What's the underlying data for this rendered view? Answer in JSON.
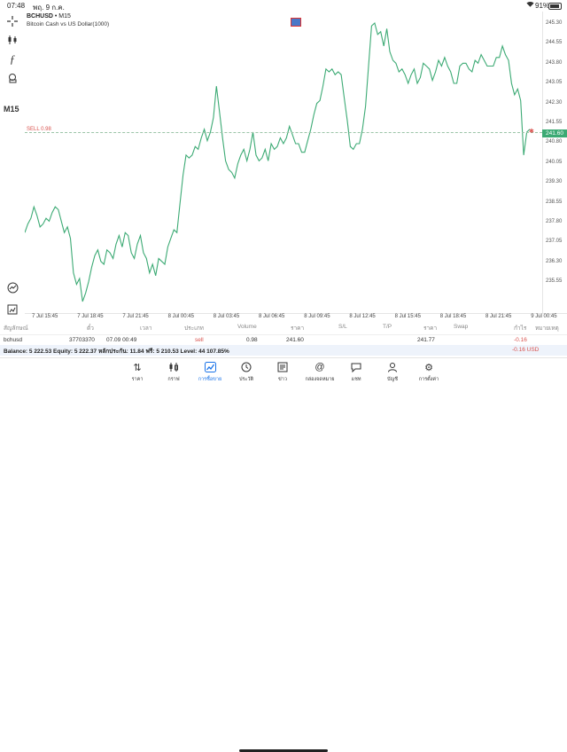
{
  "status_bar": {
    "time": "07:48",
    "date": "พฤ. 9 ก.ค.",
    "battery": "91%"
  },
  "toolbar": {
    "timeframe": "M15"
  },
  "chart_header": {
    "symbol": "BCHUSD",
    "timeframe": "M15",
    "description": "Bitcoin Cash vs US Dollar(1000)"
  },
  "sell_line": {
    "label": "SELL 0.98",
    "price": "241.60"
  },
  "price_ticks": [
    "245.30",
    "244.55",
    "243.80",
    "243.05",
    "242.30",
    "241.55",
    "240.80",
    "240.05",
    "239.30",
    "238.55",
    "237.80",
    "237.05",
    "236.30",
    "235.55"
  ],
  "time_ticks": [
    "7 Jul 15:45",
    "7 Jul 18:45",
    "7 Jul 21:45",
    "8 Jul 00:45",
    "8 Jul 03:45",
    "8 Jul 06:45",
    "8 Jul 09:45",
    "8 Jul 12:45",
    "8 Jul 15:45",
    "8 Jul 18:45",
    "8 Jul 21:45",
    "9 Jul 00:45"
  ],
  "table": {
    "headers": [
      "สัญลักษณ์",
      "ตั๋ว",
      "เวลา",
      "ประเภท",
      "Volume",
      "ราคา",
      "S/L",
      "T/P",
      "ราคา",
      "Swap",
      "กำไร",
      "หมายเหตุ"
    ],
    "row": {
      "symbol": "bchusd",
      "ticket": "37703370",
      "time": "07.09 00:49",
      "type": "sell",
      "volume": "0.98",
      "open_price": "241.60",
      "current_price": "241.77",
      "profit": "-0.16"
    }
  },
  "balance_bar": {
    "summary": "Balance: 5 222.53  Equity: 5 222.37  หลักประกัน: 11.84  ฟรี: 5 210.53  Level: 44 107.85%",
    "total": "-0.16  USD"
  },
  "tabs": [
    {
      "label": "ราคา",
      "icon": "arrows-up-down-icon"
    },
    {
      "label": "กราฟ",
      "icon": "candles-icon"
    },
    {
      "label": "การซื้อขาย",
      "icon": "trade-icon",
      "active": true
    },
    {
      "label": "ประวัติ",
      "icon": "history-icon"
    },
    {
      "label": "ข่าว",
      "icon": "news-icon"
    },
    {
      "label": "กล่องจดหมาย",
      "icon": "at-icon"
    },
    {
      "label": "แชท",
      "icon": "chat-icon"
    },
    {
      "label": "บัญชี",
      "icon": "account-icon"
    },
    {
      "label": "การตั้งค่า",
      "icon": "gear-icon"
    }
  ],
  "chart_data": {
    "type": "line",
    "price_range": [
      235.2,
      245.7
    ],
    "series": [
      {
        "color": "#3caa74",
        "values": [
          238.0,
          238.3,
          238.5,
          238.9,
          238.6,
          238.2,
          238.3,
          238.5,
          238.4,
          238.7,
          238.9,
          238.8,
          238.4,
          238.0,
          238.2,
          237.8,
          236.6,
          236.2,
          236.4,
          235.6,
          235.9,
          236.3,
          236.8,
          237.2,
          237.4,
          237.0,
          236.9,
          237.4,
          237.3,
          237.1,
          237.6,
          237.9,
          237.5,
          238.0,
          237.9,
          237.3,
          237.1,
          237.6,
          237.9,
          237.3,
          237.1,
          236.6,
          236.9,
          236.5,
          237.1,
          237.0,
          236.9,
          237.5,
          237.8,
          238.1,
          238.0,
          239.0,
          240.0,
          240.7,
          240.6,
          240.7,
          241.0,
          240.9,
          241.3,
          241.6,
          241.2,
          241.5,
          242.0,
          243.1,
          242.2,
          241.3,
          240.5,
          240.2,
          240.1,
          239.9,
          240.4,
          240.7,
          240.9,
          240.5,
          240.9,
          241.5,
          240.7,
          240.5,
          240.6,
          240.9,
          240.5,
          241.1,
          240.9,
          241.0,
          241.3,
          241.1,
          241.3,
          241.7,
          241.4,
          241.1,
          241.1,
          240.8,
          240.8,
          241.2,
          241.6,
          242.1,
          242.5,
          242.6,
          243.1,
          243.7,
          243.6,
          243.7,
          243.5,
          243.6,
          243.5,
          242.7,
          241.9,
          241.0,
          240.9,
          241.1,
          241.1,
          241.6,
          242.4,
          243.8,
          245.2,
          245.3,
          244.9,
          245.0,
          244.5,
          245.1,
          244.3,
          244.0,
          243.9,
          243.6,
          243.7,
          243.5,
          243.2,
          243.5,
          243.7,
          243.2,
          243.4,
          243.9,
          243.8,
          243.7,
          243.3,
          243.6,
          244.0,
          243.8,
          244.1,
          243.8,
          243.6,
          243.2,
          243.2,
          243.8,
          243.9,
          243.9,
          243.7,
          243.6,
          244.0,
          243.9,
          244.2,
          244.0,
          243.8,
          243.8,
          243.8,
          244.1,
          244.1,
          244.5,
          244.2,
          244.0,
          243.2,
          242.8,
          243.0,
          242.6,
          240.7,
          241.5,
          241.6
        ]
      }
    ]
  }
}
